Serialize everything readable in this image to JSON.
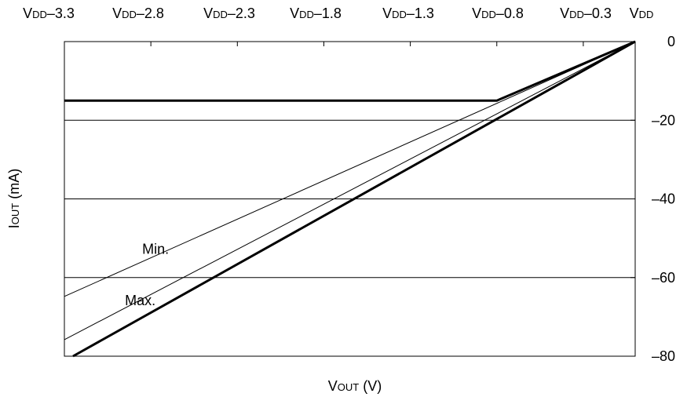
{
  "chart_data": {
    "type": "line",
    "x_ticks": [
      {
        "v": -3.3,
        "label": "VDD–3.3"
      },
      {
        "v": -2.8,
        "label": "VDD–2.8"
      },
      {
        "v": -2.3,
        "label": "VDD–2.3"
      },
      {
        "v": -1.8,
        "label": "VDD–1.8"
      },
      {
        "v": -1.3,
        "label": "VDD–1.3"
      },
      {
        "v": -0.8,
        "label": "VDD–0.8"
      },
      {
        "v": -0.3,
        "label": "VDD–0.3"
      },
      {
        "v": 0.0,
        "label": "VDD"
      }
    ],
    "y_ticks": [
      {
        "v": 0,
        "label": "0"
      },
      {
        "v": -20,
        "label": "–20"
      },
      {
        "v": -40,
        "label": "–40"
      },
      {
        "v": -60,
        "label": "–60"
      },
      {
        "v": -80,
        "label": "–80"
      }
    ],
    "xlabel": "VOUT (V)",
    "ylabel": "IOUT (mA)",
    "xlim": [
      -3.3,
      0.0
    ],
    "ylim": [
      -80,
      0
    ],
    "grid_y": [
      -20,
      -40,
      -60
    ],
    "series": [
      {
        "name": "",
        "weight": "bold",
        "x": [
          -3.3,
          -0.8,
          0.0
        ],
        "y": [
          -15,
          -15,
          0
        ]
      },
      {
        "name": "",
        "weight": "bold",
        "x": [
          -3.25,
          0.0
        ],
        "y": [
          -80,
          0
        ]
      },
      {
        "name": "Min.",
        "weight": "thin",
        "x": [
          -3.3,
          0.0
        ],
        "y": [
          -64.8,
          0
        ]
      },
      {
        "name": "Max.",
        "weight": "thin",
        "x": [
          -3.3,
          0.0
        ],
        "y": [
          -75.8,
          0
        ]
      }
    ],
    "annotations": [
      {
        "text": "Min.",
        "x": -2.85,
        "y": -54
      },
      {
        "text": "Max.",
        "x": -2.95,
        "y": -67
      }
    ]
  }
}
